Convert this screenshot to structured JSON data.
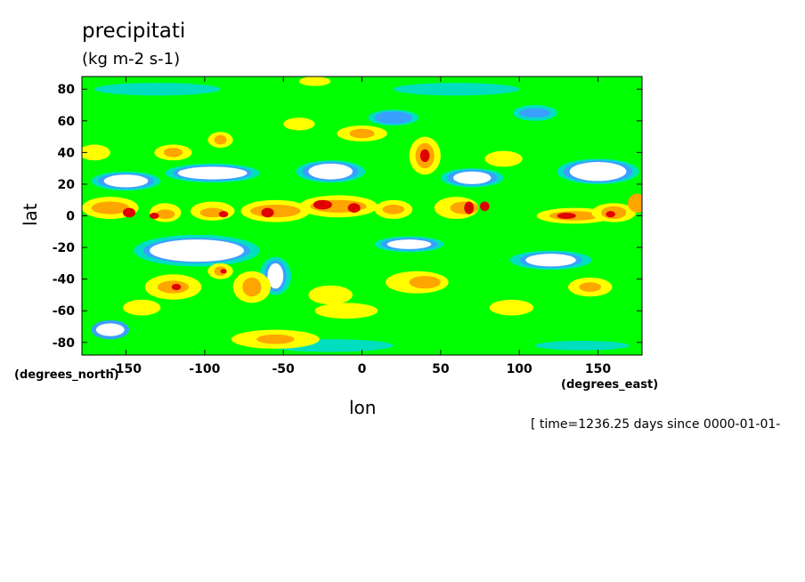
{
  "chart_data": {
    "type": "heatmap",
    "title": "precipitati",
    "units": "(kg m-2 s-1)",
    "xlabel": "lon",
    "ylabel": "lat",
    "x_units": "(degrees_east)",
    "y_units": "(degrees_north)",
    "xlim": [
      -178,
      178
    ],
    "ylim": [
      -88,
      88
    ],
    "x_ticks": [
      -150,
      -100,
      -50,
      0,
      50,
      100,
      150
    ],
    "y_ticks": [
      80,
      60,
      40,
      20,
      0,
      -20,
      -40,
      -60,
      -80
    ],
    "x_tick_labels": [
      "-150",
      "-100",
      "-50",
      "0",
      "50",
      "100",
      "150"
    ],
    "y_tick_labels": [
      "80",
      "60",
      "40",
      "20",
      "0",
      "-20",
      "-40",
      "-60",
      "-80"
    ],
    "contour_colors": [
      "#ffffff",
      "#3aa0ff",
      "#00e0c0",
      "#00ff00",
      "#ffff00",
      "#ffa500",
      "#e00000"
    ],
    "grid": false,
    "legend": "none",
    "annotation": "[ time=1236.25 days since 0000-01-01-"
  }
}
